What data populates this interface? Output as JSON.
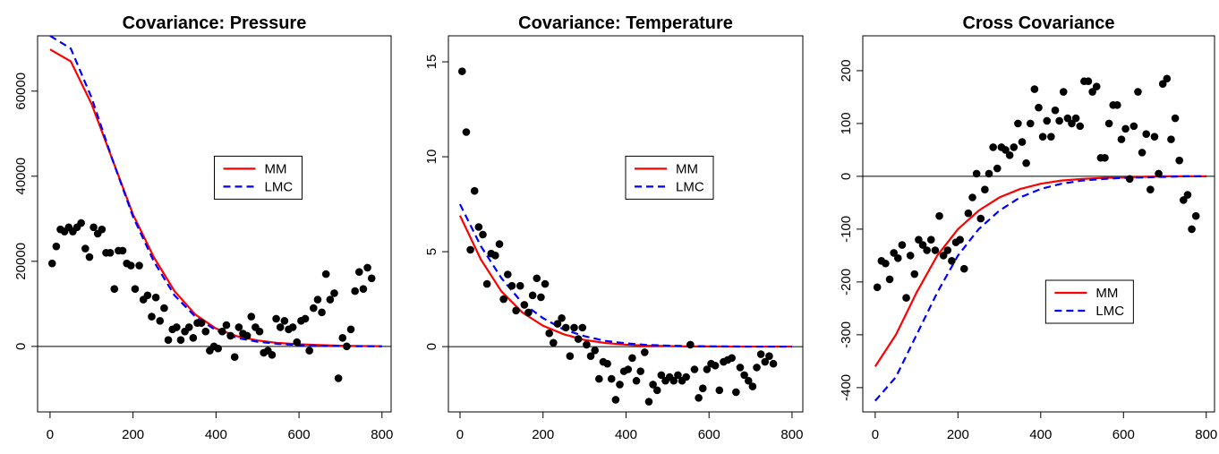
{
  "chart_data": [
    {
      "type": "scatter",
      "title": "Covariance: Pressure",
      "x": [
        5,
        15,
        25,
        35,
        45,
        55,
        65,
        75,
        85,
        95,
        105,
        115,
        125,
        135,
        145,
        155,
        165,
        175,
        185,
        195,
        205,
        215,
        225,
        235,
        245,
        255,
        265,
        275,
        285,
        295,
        305,
        315,
        325,
        335,
        345,
        355,
        365,
        375,
        385,
        395,
        405,
        415,
        425,
        435,
        445,
        455,
        465,
        475,
        485,
        495,
        505,
        515,
        525,
        535,
        545,
        555,
        565,
        575,
        585,
        595,
        605,
        615,
        625,
        635,
        645,
        655,
        665,
        675,
        685,
        695,
        705,
        715,
        725,
        735,
        745,
        755,
        765,
        775
      ],
      "values": [
        19500,
        23500,
        27500,
        27000,
        28000,
        27000,
        28000,
        29000,
        23000,
        21000,
        28000,
        26500,
        27500,
        22000,
        22000,
        13500,
        22500,
        22500,
        19500,
        19000,
        13500,
        19000,
        11000,
        12000,
        7000,
        11500,
        6000,
        9000,
        1500,
        4000,
        4500,
        1500,
        3500,
        4500,
        2000,
        5500,
        5500,
        3500,
        -1000,
        0,
        -500,
        3500,
        5000,
        2500,
        -2500,
        4500,
        3000,
        2500,
        7000,
        4500,
        3500,
        -1500,
        -1000,
        -2000,
        6500,
        4500,
        6000,
        4000,
        4500,
        1000,
        6000,
        6500,
        -1000,
        9000,
        11000,
        8000,
        17000,
        11000,
        12500,
        -7500,
        2000,
        0,
        4000,
        13000,
        17500,
        13500,
        18500,
        16000
      ],
      "color": "#000000",
      "series": [
        {
          "name": "MM",
          "color": "#ff0000",
          "linestyle": "solid",
          "x": [
            0,
            50,
            100,
            150,
            200,
            250,
            300,
            350,
            400,
            450,
            500,
            550,
            600,
            650,
            700,
            750,
            800
          ],
          "values": [
            69800,
            67000,
            57000,
            44000,
            31000,
            21000,
            13000,
            7500,
            4200,
            2400,
            1400,
            800,
            500,
            300,
            150,
            80,
            40
          ]
        },
        {
          "name": "LMC",
          "color": "#0000ff",
          "linestyle": "dashed",
          "x": [
            0,
            50,
            100,
            150,
            200,
            250,
            300,
            350,
            400,
            450,
            500,
            550,
            600,
            650,
            700,
            750,
            800
          ],
          "values": [
            73000,
            70000,
            58500,
            44000,
            30500,
            20000,
            12000,
            7000,
            3800,
            2000,
            1100,
            600,
            300,
            150,
            80,
            40,
            20
          ]
        }
      ],
      "hline": 0,
      "legend": "center",
      "xlim": [
        -30,
        822
      ],
      "ylim": [
        -15400,
        73000
      ],
      "xticks": [
        0,
        200,
        400,
        600,
        800
      ],
      "yticks": [
        0,
        20000,
        40000,
        60000
      ]
    },
    {
      "type": "scatter",
      "title": "Covariance: Temperature",
      "x": [
        5,
        15,
        25,
        35,
        45,
        55,
        65,
        75,
        85,
        95,
        105,
        115,
        125,
        135,
        145,
        155,
        165,
        175,
        185,
        195,
        205,
        215,
        225,
        235,
        245,
        255,
        265,
        275,
        285,
        295,
        305,
        315,
        325,
        335,
        345,
        355,
        365,
        375,
        385,
        395,
        405,
        415,
        425,
        435,
        445,
        455,
        465,
        475,
        485,
        495,
        505,
        515,
        525,
        535,
        545,
        555,
        565,
        575,
        585,
        595,
        605,
        615,
        625,
        635,
        645,
        655,
        665,
        675,
        685,
        695,
        705,
        715,
        725,
        735,
        745,
        755
      ],
      "values": [
        14.5,
        11.3,
        5.1,
        8.2,
        6.3,
        5.9,
        3.3,
        4.9,
        4.8,
        5.4,
        2.5,
        3.8,
        3.2,
        1.9,
        3.2,
        2.2,
        1.8,
        2.7,
        3.6,
        2.6,
        3.3,
        0.7,
        0.2,
        1.2,
        1.5,
        1.0,
        -0.5,
        1.0,
        0.4,
        1.0,
        0.1,
        -0.5,
        -0.2,
        -1.7,
        -0.8,
        -0.9,
        -1.7,
        -2.8,
        -2.0,
        -1.3,
        -1.2,
        -0.6,
        -1.8,
        -1.3,
        -0.3,
        -2.9,
        -2.0,
        -2.3,
        -1.5,
        -1.8,
        -1.6,
        -1.8,
        -1.5,
        -1.8,
        -1.6,
        0.1,
        -1.2,
        -2.7,
        -2.2,
        -1.2,
        -0.9,
        -1.0,
        -2.3,
        -0.8,
        -0.7,
        -0.6,
        -2.4,
        -1.1,
        -1.5,
        -1.8,
        -2.1,
        -1.1,
        -0.4,
        -0.8,
        -0.5,
        -0.9
      ],
      "color": "#000000",
      "series": [
        {
          "name": "MM",
          "color": "#ff0000",
          "linestyle": "solid",
          "x": [
            0,
            50,
            100,
            150,
            200,
            250,
            300,
            350,
            400,
            450,
            500,
            550,
            600,
            650,
            700,
            750,
            800
          ],
          "values": [
            6.9,
            4.6,
            2.9,
            1.8,
            1.1,
            0.65,
            0.35,
            0.19,
            0.1,
            0.05,
            0.03,
            0.01,
            0.01,
            0,
            0,
            0,
            0
          ]
        },
        {
          "name": "LMC",
          "color": "#0000ff",
          "linestyle": "dashed",
          "x": [
            0,
            50,
            100,
            150,
            200,
            250,
            300,
            350,
            400,
            450,
            500,
            550,
            600,
            650,
            700,
            750,
            800
          ],
          "values": [
            7.5,
            5.3,
            3.6,
            2.3,
            1.5,
            0.9,
            0.55,
            0.3,
            0.17,
            0.09,
            0.05,
            0.03,
            0.01,
            0.01,
            0,
            0,
            0
          ]
        }
      ],
      "hline": 0,
      "legend": "center",
      "xlim": [
        -28,
        826
      ],
      "ylim": [
        -3.44,
        16.37
      ],
      "xticks": [
        0,
        200,
        400,
        600,
        800
      ],
      "yticks": [
        0,
        5,
        10,
        15
      ]
    },
    {
      "type": "scatter",
      "title": "Cross Covariance",
      "x": [
        5,
        15,
        25,
        35,
        45,
        55,
        65,
        75,
        85,
        95,
        105,
        115,
        125,
        135,
        145,
        155,
        165,
        175,
        185,
        195,
        205,
        215,
        225,
        235,
        245,
        255,
        265,
        275,
        285,
        295,
        305,
        315,
        325,
        335,
        345,
        355,
        365,
        375,
        385,
        395,
        405,
        415,
        425,
        435,
        445,
        455,
        465,
        475,
        485,
        495,
        505,
        515,
        525,
        535,
        545,
        555,
        565,
        575,
        585,
        595,
        605,
        615,
        625,
        635,
        645,
        655,
        665,
        675,
        685,
        695,
        705,
        715,
        725,
        735,
        745,
        755,
        765,
        775
      ],
      "values": [
        -210,
        -160,
        -165,
        -195,
        -145,
        -155,
        -130,
        -230,
        -150,
        -185,
        -120,
        -130,
        -140,
        -120,
        -140,
        -75,
        -150,
        -140,
        -160,
        -125,
        -120,
        -175,
        -70,
        -40,
        5,
        -80,
        -25,
        5,
        55,
        15,
        55,
        50,
        40,
        55,
        100,
        65,
        25,
        100,
        165,
        130,
        75,
        105,
        75,
        125,
        105,
        160,
        110,
        100,
        110,
        95,
        180,
        180,
        160,
        170,
        35,
        35,
        100,
        135,
        135,
        70,
        90,
        -5,
        95,
        160,
        45,
        80,
        -25,
        75,
        5,
        175,
        185,
        70,
        110,
        30,
        -45,
        -35,
        -100,
        -75
      ],
      "color": "#000000",
      "series": [
        {
          "name": "MM",
          "color": "#ff0000",
          "linestyle": "solid",
          "x": [
            0,
            50,
            100,
            150,
            200,
            250,
            300,
            350,
            400,
            450,
            500,
            550,
            600,
            650,
            700,
            750,
            800
          ],
          "values": [
            -360,
            -300,
            -220,
            -150,
            -100,
            -65,
            -40,
            -24,
            -14,
            -8,
            -5,
            -3,
            -2,
            -1,
            0,
            0,
            0
          ]
        },
        {
          "name": "LMC",
          "color": "#0000ff",
          "linestyle": "dashed",
          "x": [
            0,
            50,
            100,
            150,
            200,
            250,
            300,
            350,
            400,
            450,
            500,
            550,
            600,
            650,
            700,
            750,
            800
          ],
          "values": [
            -425,
            -380,
            -300,
            -220,
            -150,
            -100,
            -65,
            -40,
            -24,
            -14,
            -8,
            -5,
            -3,
            -2,
            -1,
            0,
            0
          ]
        }
      ],
      "hline": 0,
      "legend": "bottom",
      "xlim": [
        -30,
        820
      ],
      "ylim": [
        -446,
        266
      ],
      "xticks": [
        0,
        200,
        400,
        600,
        800
      ],
      "yticks": [
        -400,
        -300,
        -200,
        -100,
        0,
        100,
        200
      ]
    }
  ]
}
